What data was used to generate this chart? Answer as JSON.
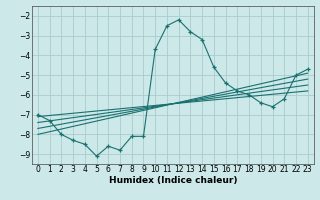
{
  "xlabel": "Humidex (Indice chaleur)",
  "xlim": [
    -0.5,
    23.5
  ],
  "ylim": [
    -9.5,
    -1.5
  ],
  "yticks": [
    -9,
    -8,
    -7,
    -6,
    -5,
    -4,
    -3,
    -2
  ],
  "xticks": [
    0,
    1,
    2,
    3,
    4,
    5,
    6,
    7,
    8,
    9,
    10,
    11,
    12,
    13,
    14,
    15,
    16,
    17,
    18,
    19,
    20,
    21,
    22,
    23
  ],
  "bg_color": "#cce8e8",
  "grid_color": "#aacccc",
  "line_color": "#1a7070",
  "x_main": [
    0,
    1,
    2,
    3,
    4,
    5,
    6,
    7,
    8,
    9,
    10,
    11,
    12,
    13,
    14,
    15,
    16,
    17,
    18,
    19,
    20,
    21,
    22,
    23
  ],
  "y_main": [
    -7.0,
    -7.3,
    -8.0,
    -8.3,
    -8.5,
    -9.1,
    -8.6,
    -8.8,
    -8.1,
    -8.1,
    -3.7,
    -2.5,
    -2.2,
    -2.8,
    -3.2,
    -4.6,
    -5.4,
    -5.8,
    -6.0,
    -6.4,
    -6.6,
    -6.2,
    -5.0,
    -4.7
  ],
  "trend_lines": [
    [
      [
        0,
        23
      ],
      [
        -7.1,
        -5.8
      ]
    ],
    [
      [
        0,
        23
      ],
      [
        -7.4,
        -5.5
      ]
    ],
    [
      [
        0,
        23
      ],
      [
        -7.7,
        -5.2
      ]
    ],
    [
      [
        0,
        23
      ],
      [
        -8.0,
        -4.9
      ]
    ]
  ]
}
